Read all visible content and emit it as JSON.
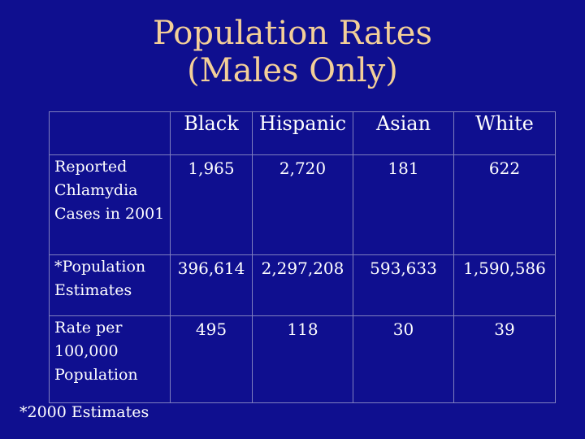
{
  "slide": {
    "title_line1": "Population Rates",
    "title_line2": "(Males Only)",
    "footnote": "*2000 Estimates"
  },
  "table": {
    "columns": [
      "",
      "Black",
      "Hispanic",
      "Asian",
      "White"
    ],
    "rows": [
      {
        "label": "Reported Chlamydia Cases in 2001",
        "values": [
          "1,965",
          "2,720",
          "181",
          "622"
        ]
      },
      {
        "label": "*Population Estimates",
        "values": [
          "396,614",
          "2,297,208",
          "593,633",
          "1,590,586"
        ]
      },
      {
        "label": "Rate per 100,000 Population",
        "values": [
          "495",
          "118",
          "30",
          "39"
        ]
      }
    ]
  },
  "colors": {
    "background": "#0f0f8f",
    "title": "#f3cf98",
    "text": "#ffffff",
    "grid": "#7f7fbf"
  }
}
